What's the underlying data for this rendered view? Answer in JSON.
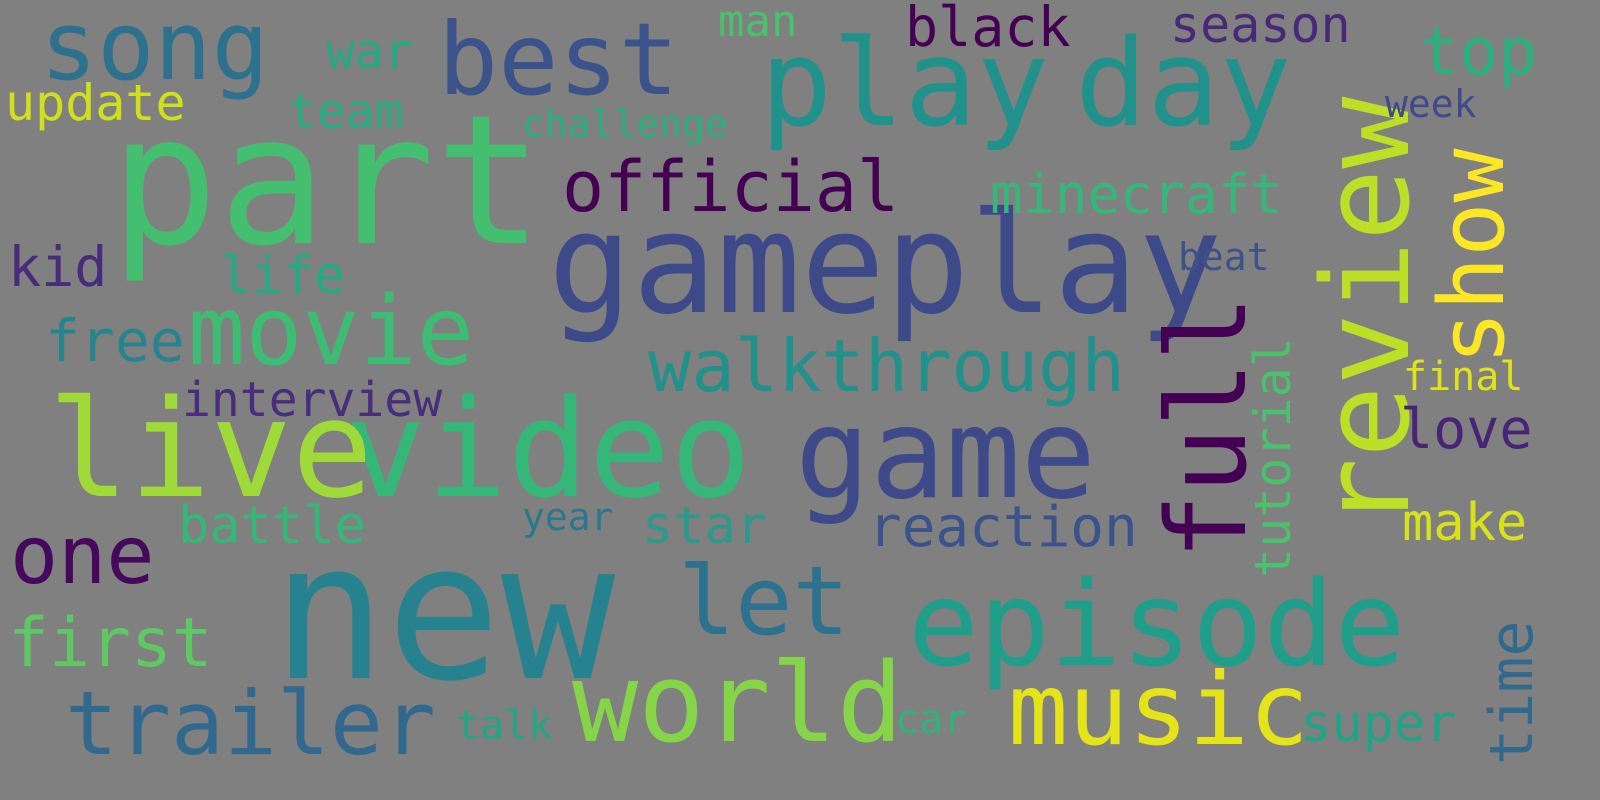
{
  "background": "#808080",
  "words": [
    {
      "text": "new",
      "color": "#26828e",
      "vertical": false
    },
    {
      "text": "part",
      "color": "#44bf70",
      "vertical": false
    },
    {
      "text": "gameplay",
      "color": "#3e4989",
      "vertical": false
    },
    {
      "text": "video",
      "color": "#35b779",
      "vertical": false
    },
    {
      "text": "live",
      "color": "#a0da39",
      "vertical": false
    },
    {
      "text": "game",
      "color": "#3e4989",
      "vertical": false
    },
    {
      "text": "episode",
      "color": "#1f9e89",
      "vertical": false
    },
    {
      "text": "play",
      "color": "#21918c",
      "vertical": false
    },
    {
      "text": "day",
      "color": "#21918c",
      "vertical": false
    },
    {
      "text": "review",
      "color": "#bddf26",
      "vertical": true
    },
    {
      "text": "world",
      "color": "#86d549",
      "vertical": false
    },
    {
      "text": "music",
      "color": "#e5e419",
      "vertical": false
    },
    {
      "text": "full",
      "color": "#440154",
      "vertical": true
    },
    {
      "text": "movie",
      "color": "#3dbc74",
      "vertical": false
    },
    {
      "text": "best",
      "color": "#3b528b",
      "vertical": false
    },
    {
      "text": "song",
      "color": "#2c728e",
      "vertical": false
    },
    {
      "text": "trailer",
      "color": "#31688e",
      "vertical": false
    },
    {
      "text": "let",
      "color": "#2c728e",
      "vertical": false
    },
    {
      "text": "one",
      "color": "#46085c",
      "vertical": false
    },
    {
      "text": "walkthrough",
      "color": "#21918c",
      "vertical": false
    },
    {
      "text": "show",
      "color": "#fde725",
      "vertical": true
    },
    {
      "text": "official",
      "color": "#440154",
      "vertical": false
    },
    {
      "text": "first",
      "color": "#5ec962",
      "vertical": false
    },
    {
      "text": "reaction",
      "color": "#3b528b",
      "vertical": false
    },
    {
      "text": "top",
      "color": "#2ab07f",
      "vertical": false
    },
    {
      "text": "minecraft",
      "color": "#35b779",
      "vertical": false
    },
    {
      "text": "time",
      "color": "#31688e",
      "vertical": true
    },
    {
      "text": "tutorial",
      "color": "#4ac16d",
      "vertical": true
    },
    {
      "text": "battle",
      "color": "#35b779",
      "vertical": false
    },
    {
      "text": "star",
      "color": "#2a9a8a",
      "vertical": false
    },
    {
      "text": "super",
      "color": "#20a486",
      "vertical": false
    },
    {
      "text": "black",
      "color": "#440154",
      "vertical": false
    },
    {
      "text": "season",
      "color": "#482878",
      "vertical": false
    },
    {
      "text": "update",
      "color": "#d0e11c",
      "vertical": false
    },
    {
      "text": "interview",
      "color": "#472d7b",
      "vertical": false
    },
    {
      "text": "love",
      "color": "#482475",
      "vertical": false
    },
    {
      "text": "make",
      "color": "#d8e219",
      "vertical": false
    },
    {
      "text": "free",
      "color": "#25858e",
      "vertical": false
    },
    {
      "text": "life",
      "color": "#25ab82",
      "vertical": false
    },
    {
      "text": "kid",
      "color": "#472c7a",
      "vertical": false
    },
    {
      "text": "team",
      "color": "#27ad81",
      "vertical": false
    },
    {
      "text": "war",
      "color": "#25ab82",
      "vertical": false
    },
    {
      "text": "man",
      "color": "#4ac16d",
      "vertical": false
    },
    {
      "text": "challenge",
      "color": "#29af7f",
      "vertical": false
    },
    {
      "text": "beat",
      "color": "#3b528b",
      "vertical": false
    },
    {
      "text": "final",
      "color": "#dfe318",
      "vertical": false
    },
    {
      "text": "week",
      "color": "#3e4a89",
      "vertical": false
    },
    {
      "text": "talk",
      "color": "#22a785",
      "vertical": false
    },
    {
      "text": "car",
      "color": "#2eb37c",
      "vertical": false
    },
    {
      "text": "year",
      "color": "#2a788e",
      "vertical": false
    }
  ]
}
